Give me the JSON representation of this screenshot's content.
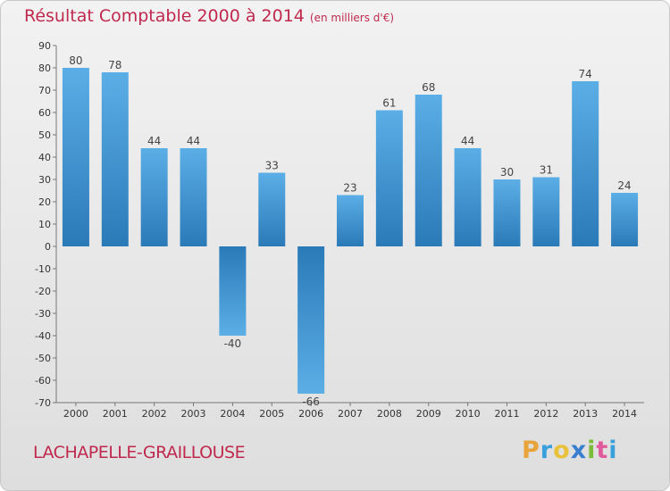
{
  "chart_data": {
    "type": "bar",
    "title": "Résultat Comptable 2000 à 2014",
    "subtitle": "(en milliers d'€)",
    "categories": [
      "2000",
      "2001",
      "2002",
      "2003",
      "2004",
      "2005",
      "2006",
      "2007",
      "2008",
      "2009",
      "2010",
      "2011",
      "2012",
      "2013",
      "2014"
    ],
    "values": [
      80,
      78,
      44,
      44,
      -40,
      33,
      -66,
      23,
      61,
      68,
      44,
      30,
      31,
      74,
      24
    ],
    "ylim": [
      -70,
      90
    ],
    "ytick_step": 10,
    "grid": false,
    "xlabel": "",
    "ylabel": ""
  },
  "commune": "LACHAPELLE-GRAILLOUSE",
  "brand": {
    "letters": [
      "P",
      "r",
      "o",
      "x",
      "i",
      "t",
      "i"
    ],
    "colors": [
      "#e8a33a",
      "#3aa0dc",
      "#e8c23a",
      "#3a7fcf",
      "#7dbb3a",
      "#e05a9c",
      "#3aa0dc"
    ]
  },
  "colors": {
    "bar_light": "#5baee6",
    "bar_dark": "#2a7ab8",
    "title": "#c0294e"
  }
}
